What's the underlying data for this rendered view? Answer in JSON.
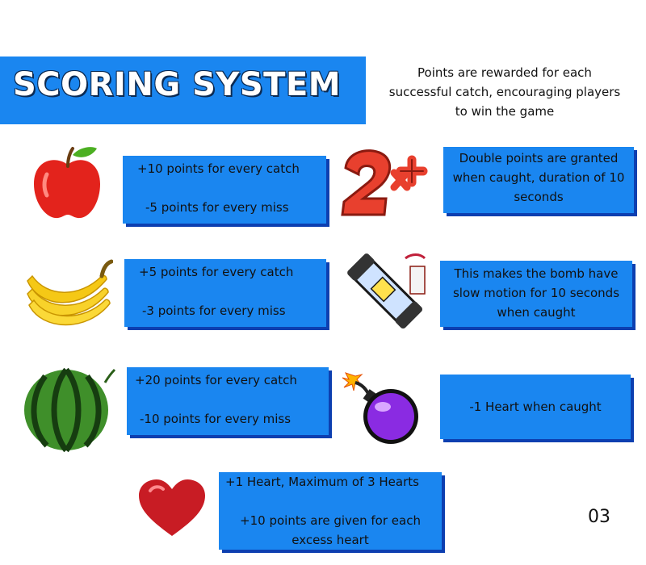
{
  "slide": {
    "title": "SCORING SYSTEM",
    "intro_lines": [
      "Points are rewarded for each",
      "successful catch, encouraging players",
      "to win the game"
    ],
    "page_number": "03"
  },
  "items": {
    "apple": {
      "icon": "apple-icon",
      "catch": "+10 points for every catch",
      "miss": "-5 points for every miss"
    },
    "banana": {
      "icon": "banana-icon",
      "catch": "+5 points for every catch",
      "miss": "-3 points for every miss"
    },
    "watermelon": {
      "icon": "watermelon-icon",
      "catch": "+20 points for every catch",
      "miss": "-10 points for every miss"
    },
    "heart": {
      "icon": "heart-icon",
      "line1": "+1 Heart, Maximum of 3 Hearts",
      "line2": "+10 points are given for each",
      "line3": "excess heart"
    },
    "double": {
      "icon": "double-points-icon",
      "lines": [
        "Double points are granted",
        "when caught, duration of 10",
        "seconds"
      ]
    },
    "slowmo": {
      "icon": "slow-motion-capsule-icon",
      "lines": [
        "This makes the bomb have",
        "slow motion for 10 seconds",
        "when caught"
      ]
    },
    "bomb": {
      "icon": "bomb-icon",
      "text": "-1 Heart when caught"
    }
  },
  "colors": {
    "box_blue": "#1a86f0",
    "box_shadow": "#0d3fb0"
  }
}
